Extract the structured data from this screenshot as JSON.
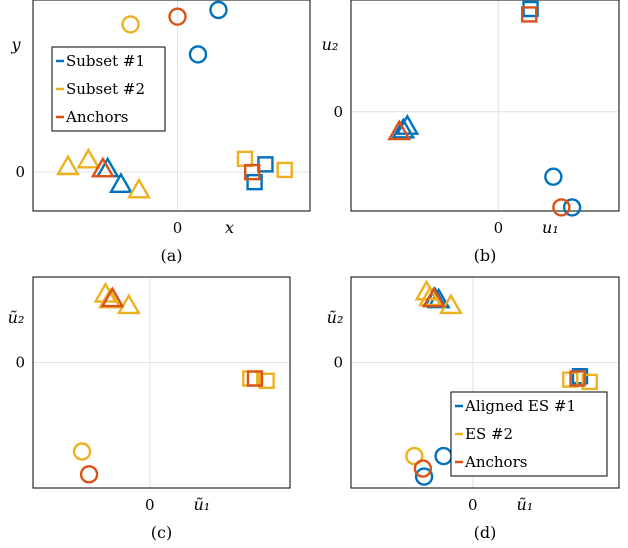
{
  "colors": {
    "subset1": "#0072BD",
    "subset2": "#EDB120",
    "anchors": "#D95319"
  },
  "chart_data": [
    {
      "type": "scatter",
      "caption": "(a)",
      "xlabel": "x",
      "ylabel": "y",
      "xtick_labels": [
        "0"
      ],
      "ytick_labels": [
        "0"
      ],
      "xlim": [
        -1.2,
        1.1
      ],
      "ylim": [
        -0.35,
        1.55
      ],
      "grid": "zero-lines",
      "legend": {
        "placement": "left",
        "entries": [
          {
            "label": "Subset #1",
            "color_key": "subset1"
          },
          {
            "label": "Subset #2",
            "color_key": "subset2"
          },
          {
            "label": "Anchors",
            "color_key": "anchors"
          }
        ]
      },
      "series": [
        {
          "name": "Subset #1",
          "color_key": "subset1",
          "points": [
            {
              "x": 0.34,
              "y": 1.46,
              "shape": "circle"
            },
            {
              "x": 0.17,
              "y": 1.06,
              "shape": "circle"
            },
            {
              "x": -0.58,
              "y": 0.03,
              "shape": "triangle"
            },
            {
              "x": -0.47,
              "y": -0.11,
              "shape": "triangle"
            },
            {
              "x": 0.73,
              "y": 0.07,
              "shape": "square"
            },
            {
              "x": 0.64,
              "y": -0.09,
              "shape": "square"
            }
          ]
        },
        {
          "name": "Subset #2",
          "color_key": "subset2",
          "points": [
            {
              "x": -0.39,
              "y": 1.33,
              "shape": "circle"
            },
            {
              "x": -0.91,
              "y": 0.05,
              "shape": "triangle"
            },
            {
              "x": -0.74,
              "y": 0.11,
              "shape": "triangle"
            },
            {
              "x": -0.32,
              "y": -0.16,
              "shape": "triangle"
            },
            {
              "x": 0.56,
              "y": 0.12,
              "shape": "square"
            },
            {
              "x": 0.89,
              "y": 0.02,
              "shape": "square"
            }
          ]
        },
        {
          "name": "Anchors",
          "color_key": "anchors",
          "points": [
            {
              "x": 0.0,
              "y": 1.4,
              "shape": "circle"
            },
            {
              "x": -0.62,
              "y": 0.03,
              "shape": "triangle"
            },
            {
              "x": 0.62,
              "y": 0.0,
              "shape": "square"
            }
          ]
        }
      ]
    },
    {
      "type": "scatter",
      "caption": "(b)",
      "xlabel": "u₁",
      "ylabel": "u₂",
      "xtick_labels": [
        "0"
      ],
      "ytick_labels": [
        "0"
      ],
      "xlim": [
        -1.1,
        0.9
      ],
      "ylim": [
        -0.55,
        0.62
      ],
      "grid": "zero-lines",
      "series": [
        {
          "name": "Subset #1",
          "color_key": "subset1",
          "points": [
            {
              "x": 0.24,
              "y": 0.57,
              "shape": "square"
            },
            {
              "x": -0.68,
              "y": -0.08,
              "shape": "triangle"
            },
            {
              "x": -0.71,
              "y": -0.1,
              "shape": "triangle"
            },
            {
              "x": 0.41,
              "y": -0.36,
              "shape": "circle"
            },
            {
              "x": 0.55,
              "y": -0.53,
              "shape": "circle"
            }
          ]
        },
        {
          "name": "Anchors",
          "color_key": "anchors",
          "points": [
            {
              "x": 0.23,
              "y": 0.54,
              "shape": "square"
            },
            {
              "x": -0.74,
              "y": -0.11,
              "shape": "triangle"
            },
            {
              "x": 0.47,
              "y": -0.53,
              "shape": "circle"
            }
          ]
        }
      ]
    },
    {
      "type": "scatter",
      "caption": "(c)",
      "xlabel": "ũ₁",
      "ylabel": "ũ₂",
      "xtick_labels": [
        "0"
      ],
      "ytick_labels": [
        "0"
      ],
      "xlim": [
        -1.0,
        1.2
      ],
      "ylim": [
        -1.1,
        0.75
      ],
      "grid": "zero-lines",
      "series": [
        {
          "name": "ES #2",
          "color_key": "subset2",
          "points": [
            {
              "x": -0.38,
              "y": 0.6,
              "shape": "triangle"
            },
            {
              "x": -0.34,
              "y": 0.55,
              "shape": "triangle"
            },
            {
              "x": -0.18,
              "y": 0.5,
              "shape": "triangle"
            },
            {
              "x": 1.0,
              "y": -0.16,
              "shape": "square"
            },
            {
              "x": 0.86,
              "y": -0.14,
              "shape": "square"
            },
            {
              "x": -0.58,
              "y": -0.78,
              "shape": "circle"
            }
          ]
        },
        {
          "name": "Anchors",
          "color_key": "anchors",
          "points": [
            {
              "x": -0.32,
              "y": 0.56,
              "shape": "triangle"
            },
            {
              "x": 0.9,
              "y": -0.14,
              "shape": "square"
            },
            {
              "x": -0.52,
              "y": -0.98,
              "shape": "circle"
            }
          ]
        }
      ]
    },
    {
      "type": "scatter",
      "caption": "(d)",
      "xlabel": "ũ₁",
      "ylabel": "ũ₂",
      "xtick_labels": [
        "0"
      ],
      "ytick_labels": [
        "0"
      ],
      "xlim": [
        -1.0,
        1.2
      ],
      "ylim": [
        -1.1,
        0.75
      ],
      "grid": "zero-lines",
      "legend": {
        "placement": "bottom-right",
        "entries": [
          {
            "label": "Aligned ES #1",
            "color_key": "subset1"
          },
          {
            "label": "ES #2",
            "color_key": "subset2"
          },
          {
            "label": "Anchors",
            "color_key": "anchors"
          }
        ]
      },
      "series": [
        {
          "name": "Aligned ES #1",
          "color_key": "subset1",
          "points": [
            {
              "x": -0.31,
              "y": 0.56,
              "shape": "triangle"
            },
            {
              "x": -0.28,
              "y": 0.55,
              "shape": "triangle"
            },
            {
              "x": 0.88,
              "y": -0.12,
              "shape": "square"
            },
            {
              "x": -0.24,
              "y": -0.82,
              "shape": "circle"
            },
            {
              "x": -0.4,
              "y": -1.0,
              "shape": "circle"
            }
          ]
        },
        {
          "name": "ES #2",
          "color_key": "subset2",
          "points": [
            {
              "x": -0.38,
              "y": 0.62,
              "shape": "triangle"
            },
            {
              "x": -0.35,
              "y": 0.57,
              "shape": "triangle"
            },
            {
              "x": -0.18,
              "y": 0.5,
              "shape": "triangle"
            },
            {
              "x": 0.8,
              "y": -0.15,
              "shape": "square"
            },
            {
              "x": 0.96,
              "y": -0.17,
              "shape": "square"
            },
            {
              "x": -0.48,
              "y": -0.82,
              "shape": "circle"
            }
          ]
        },
        {
          "name": "Anchors",
          "color_key": "anchors",
          "points": [
            {
              "x": -0.32,
              "y": 0.56,
              "shape": "triangle"
            },
            {
              "x": 0.86,
              "y": -0.14,
              "shape": "square"
            },
            {
              "x": -0.41,
              "y": -0.93,
              "shape": "circle"
            }
          ]
        }
      ]
    }
  ]
}
